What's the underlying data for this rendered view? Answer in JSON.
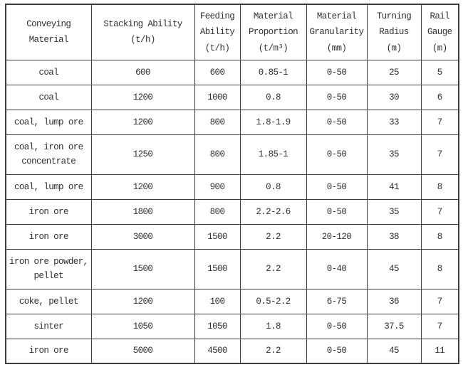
{
  "page": {
    "background_color": "#ffffff",
    "border_color": "#3d3d3d",
    "text_color": "#303030"
  },
  "table": {
    "columns": [
      "Conveying\nMaterial",
      "Stacking Ability\n(t/h)",
      "Feeding\nAbility\n(t/h)",
      "Material\nProportion\n(t/m³)",
      "Material\nGranularity\n(mm)",
      "Turning\nRadius\n(m)",
      "Rail\nGauge\n(m)"
    ],
    "rows": [
      [
        "coal",
        "600",
        "600",
        "0.85-1",
        "0-50",
        "25",
        "5"
      ],
      [
        "coal",
        "1200",
        "1000",
        "0.8",
        "0-50",
        "30",
        "6"
      ],
      [
        "coal, lump ore",
        "1200",
        "800",
        "1.8-1.9",
        "0-50",
        "33",
        "7"
      ],
      [
        "coal, iron ore\nconcentrate",
        "1250",
        "800",
        "1.85-1",
        "0-50",
        "35",
        "7"
      ],
      [
        "coal, lump ore",
        "1200",
        "900",
        "0.8",
        "0-50",
        "41",
        "8"
      ],
      [
        "iron ore",
        "1800",
        "800",
        "2.2-2.6",
        "0-50",
        "35",
        "7"
      ],
      [
        "iron ore",
        "3000",
        "1500",
        "2.2",
        "20-120",
        "38",
        "8"
      ],
      [
        "iron ore powder,\npellet",
        "1500",
        "1500",
        "2.2",
        "0-40",
        "45",
        "8"
      ],
      [
        "coke, pellet",
        "1200",
        "100",
        "0.5-2.2",
        "6-75",
        "36",
        "7"
      ],
      [
        "sinter",
        "1050",
        "1050",
        "1.8",
        "0-50",
        "37.5",
        "7"
      ],
      [
        "iron ore",
        "5000",
        "4500",
        "2.2",
        "0-50",
        "45",
        "11"
      ]
    ]
  }
}
